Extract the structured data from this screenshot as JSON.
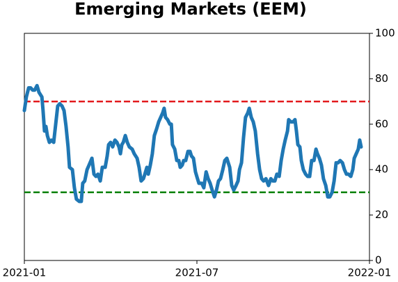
{
  "chart_data": {
    "type": "line",
    "title": "Emerging Markets (EEM)",
    "x": [
      0.0,
      0.07,
      0.15,
      0.22,
      0.29,
      0.36,
      0.44,
      0.51,
      0.61,
      0.65,
      0.7,
      0.75,
      0.8,
      0.87,
      0.94,
      1.02,
      1.09,
      1.16,
      1.23,
      1.31,
      1.38,
      1.45,
      1.52,
      1.57,
      1.67,
      1.74,
      1.81,
      1.91,
      1.98,
      2.03,
      2.1,
      2.18,
      2.25,
      2.35,
      2.42,
      2.49,
      2.56,
      2.64,
      2.71,
      2.81,
      2.88,
      2.93,
      3.0,
      3.07,
      3.15,
      3.22,
      3.29,
      3.34,
      3.39,
      3.44,
      3.51,
      3.58,
      3.65,
      3.75,
      3.82,
      3.92,
      3.99,
      4.06,
      4.14,
      4.19,
      4.26,
      4.31,
      4.38,
      4.45,
      4.52,
      4.6,
      4.67,
      4.74,
      4.81,
      4.86,
      4.91,
      4.98,
      5.06,
      5.11,
      5.15,
      5.23,
      5.3,
      5.37,
      5.42,
      5.49,
      5.54,
      5.61,
      5.69,
      5.76,
      5.81,
      5.88,
      5.95,
      6.02,
      6.07,
      6.17,
      6.24,
      6.32,
      6.39,
      6.46,
      6.53,
      6.61,
      6.68,
      6.75,
      6.82,
      6.9,
      6.97,
      7.04,
      7.14,
      7.21,
      7.28,
      7.36,
      7.43,
      7.48,
      7.55,
      7.62,
      7.69,
      7.77,
      7.82,
      7.89,
      7.96,
      8.03,
      8.11,
      8.18,
      8.25,
      8.32,
      8.4,
      8.49,
      8.57,
      8.64,
      8.71,
      8.78,
      8.86,
      8.93,
      9.0,
      9.07,
      9.15,
      9.19,
      9.27,
      9.34,
      9.41,
      9.46,
      9.51,
      9.58,
      9.63,
      9.7,
      9.78,
      9.85,
      9.92,
      9.99,
      10.07,
      10.14,
      10.19,
      10.26,
      10.33,
      10.4,
      10.48,
      10.55,
      10.62,
      10.7,
      10.77,
      10.84,
      10.91,
      10.98,
      11.06,
      11.13,
      11.2,
      11.27,
      11.35,
      11.42,
      11.47,
      11.54,
      11.61,
      11.66,
      11.71
    ],
    "values": [
      66,
      72,
      76,
      76,
      75,
      75,
      77,
      74,
      72,
      66,
      57,
      59,
      55,
      52,
      53,
      52,
      60,
      68,
      69,
      68,
      66,
      59,
      50,
      41,
      40,
      32,
      27,
      26,
      26,
      34,
      35,
      40,
      42,
      45,
      38,
      37,
      38,
      35,
      41,
      41,
      46,
      51,
      52,
      50,
      53,
      52,
      50,
      47,
      51,
      52,
      55,
      52,
      50,
      49,
      47,
      45,
      41,
      35,
      36,
      38,
      41,
      38,
      42,
      47,
      55,
      58,
      61,
      63,
      65,
      67,
      63,
      62,
      60,
      60,
      51,
      49,
      44,
      44,
      41,
      42,
      44,
      44,
      48,
      48,
      46,
      45,
      39,
      36,
      34,
      34,
      32,
      39,
      36,
      34,
      31,
      28,
      31,
      35,
      36,
      40,
      44,
      45,
      41,
      33,
      31,
      33,
      35,
      40,
      43,
      54,
      63,
      65,
      67,
      63,
      61,
      57,
      47,
      40,
      36,
      35,
      36,
      33,
      36,
      35,
      35,
      38,
      37,
      44,
      49,
      53,
      57,
      62,
      61,
      61,
      62,
      57,
      51,
      50,
      44,
      40,
      38,
      37,
      37,
      44,
      44,
      49,
      47,
      45,
      42,
      36,
      33,
      28,
      28,
      30,
      35,
      43,
      43,
      44,
      43,
      40,
      38,
      38,
      37,
      40,
      45,
      47,
      49,
      53,
      50
    ],
    "color": "#1f77b4",
    "xlim": [
      0,
      12
    ],
    "xticks": [
      {
        "value": 0,
        "label": "2021-01"
      },
      {
        "value": 6,
        "label": "2021-07"
      },
      {
        "value": 12,
        "label": "2022-01"
      }
    ],
    "ylim": [
      0,
      100
    ],
    "yticks": [
      0,
      20,
      40,
      60,
      80,
      100
    ],
    "y_axis_side": "right",
    "hlines": [
      {
        "value": 70,
        "color": "#e31a1c"
      },
      {
        "value": 30,
        "color": "#008000"
      }
    ]
  }
}
